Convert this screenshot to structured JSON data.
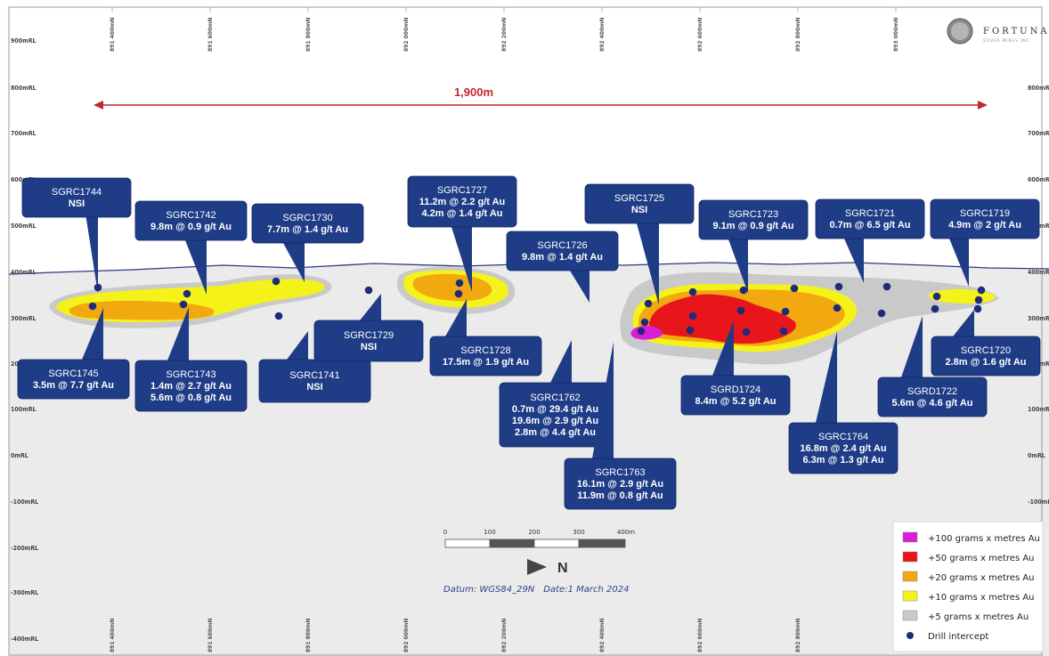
{
  "section_title": "",
  "distance_label": "1,900m",
  "rl_labels_left": [
    "900mRL",
    "800mRL",
    "700mRL",
    "600mRL",
    "500mRL",
    "400mRL",
    "300mRL",
    "200mRL",
    "100mRL",
    "0mRL",
    "-100mRL",
    "-200mRL",
    "-300mRL",
    "-400mRL"
  ],
  "rl_labels_right": [
    "",
    "800mRL",
    "700mRL",
    "600mRL",
    "500mRL",
    "400mRL",
    "300mRL",
    "200mRL",
    "100mRL",
    "0mRL",
    "-100mRL",
    "",
    "",
    ""
  ],
  "northing_labels": [
    "891 400mN",
    "891 600mN",
    "891 800mN",
    "892 000mN",
    "892 200mN",
    "892 400mN",
    "892 600mN",
    "892 800mN",
    "893 000mN"
  ],
  "company": {
    "name": "FORTUNA",
    "subtitle": "SILVER MINES INC."
  },
  "scale_bar": {
    "labels": [
      "0",
      "100",
      "200",
      "300",
      "400m"
    ]
  },
  "north_label": "N",
  "datum": {
    "text": "Datum: WGS84_29N",
    "date": "Date:1 March 2024"
  },
  "legend": {
    "items": [
      {
        "label": "+100 grams x metres Au",
        "color": "#d81fd6"
      },
      {
        "label": "+50 grams x metres Au",
        "color": "#e8161a"
      },
      {
        "label": "+20 grams x metres Au",
        "color": "#f2a90f"
      },
      {
        "label": "+10 grams x metres Au",
        "color": "#f5f21a"
      },
      {
        "label": "+5 grams x metres Au",
        "color": "#c9c9c9"
      },
      {
        "label": "Drill intercept",
        "color": "#1e2a7a"
      }
    ]
  },
  "colors": {
    "callout": "#1f3c86",
    "drill_dot": "#1e2a7a",
    "surface": "#2a3a8a",
    "distance_arrow": "#c0282d"
  },
  "holes": [
    {
      "id": "SGRC1744",
      "lines": [
        "NSI"
      ]
    },
    {
      "id": "SGRC1742",
      "lines": [
        "9.8m @ 0.9 g/t Au"
      ]
    },
    {
      "id": "SGRC1730",
      "lines": [
        "7.7m @ 1.4 g/t Au"
      ]
    },
    {
      "id": "SGRC1727",
      "lines": [
        "11.2m @ 2.2 g/t Au",
        "4.2m @ 1.4 g/t Au"
      ]
    },
    {
      "id": "SGRC1725",
      "lines": [
        "NSI"
      ]
    },
    {
      "id": "SGRC1726",
      "lines": [
        "9.8m @ 1.4 g/t Au"
      ]
    },
    {
      "id": "SGRC1723",
      "lines": [
        "9.1m @ 0.9 g/t Au"
      ]
    },
    {
      "id": "SGRC1721",
      "lines": [
        "0.7m @ 6.5 g/t Au"
      ]
    },
    {
      "id": "SGRC1719",
      "lines": [
        "4.9m @ 2 g/t Au"
      ]
    },
    {
      "id": "SGRC1745",
      "lines": [
        "3.5m @ 7.7 g/t Au"
      ]
    },
    {
      "id": "SGRC1743",
      "lines": [
        "1.4m @ 2.7 g/t Au",
        "5.6m @ 0.8 g/t Au"
      ]
    },
    {
      "id": "SGRC1741",
      "lines": [
        "NSI"
      ]
    },
    {
      "id": "SGRC1729",
      "lines": [
        "NSI"
      ]
    },
    {
      "id": "SGRC1728",
      "lines": [
        "17.5m @ 1.9 g/t Au"
      ]
    },
    {
      "id": "SGRC1762",
      "lines": [
        "0.7m @ 29.4 g/t Au",
        "19.6m @ 2.9 g/t Au",
        "2.8m @ 4.4 g/t Au"
      ]
    },
    {
      "id": "SGRC1763",
      "lines": [
        "16.1m @ 2.9 g/t Au",
        "11.9m @ 0.8 g/t Au"
      ]
    },
    {
      "id": "SGRD1724",
      "lines": [
        "8.4m @ 5.2 g/t Au"
      ]
    },
    {
      "id": "SGRC1764",
      "lines": [
        "16.8m @ 2.4 g/t Au",
        "6.3m @ 1.3 g/t Au"
      ]
    },
    {
      "id": "SGRD1722",
      "lines": [
        "5.6m @ 4.6 g/t Au"
      ]
    },
    {
      "id": "SGRC1720",
      "lines": [
        "2.8m @ 1.6 g/t Au"
      ]
    }
  ]
}
